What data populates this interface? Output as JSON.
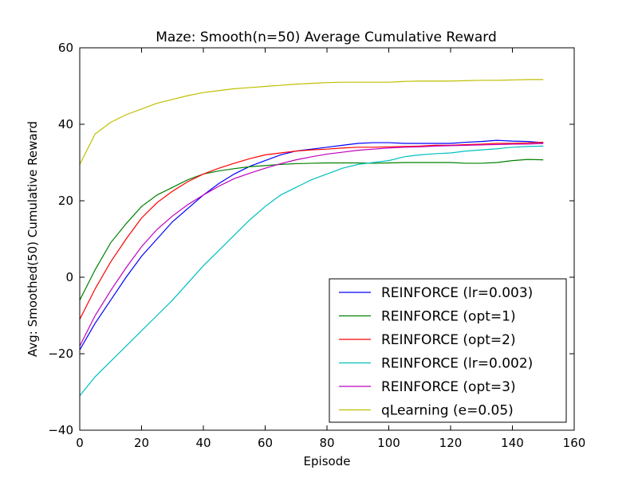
{
  "chart_data": {
    "type": "line",
    "title": "Maze: Smooth(n=50) Average Cumulative Reward",
    "xlabel": "Episode",
    "ylabel": "Avg: Smoothed(50) Cumulative Reward",
    "xlim": [
      0,
      160
    ],
    "ylim": [
      -40,
      60
    ],
    "xticks": [
      0,
      20,
      40,
      60,
      80,
      100,
      120,
      140,
      160
    ],
    "yticks": [
      -40,
      -20,
      0,
      20,
      40,
      60
    ],
    "xtick_labels": [
      "0",
      "20",
      "40",
      "60",
      "80",
      "100",
      "120",
      "140",
      "160"
    ],
    "ytick_labels": [
      "−40",
      "−20",
      "0",
      "20",
      "40",
      "60"
    ],
    "grid": false,
    "legend_position": "lower-right",
    "series": [
      {
        "name": "REINFORCE (lr=0.003)",
        "color": "#0000ff",
        "x": [
          0,
          5,
          10,
          15,
          20,
          25,
          30,
          35,
          40,
          45,
          50,
          55,
          60,
          65,
          70,
          75,
          80,
          85,
          90,
          95,
          100,
          105,
          110,
          115,
          120,
          125,
          130,
          135,
          140,
          145,
          150
        ],
        "y": [
          -19,
          -12,
          -6,
          0,
          5.5,
          10,
          14.5,
          18,
          21.5,
          24.5,
          27,
          29,
          30.5,
          32,
          33,
          33.5,
          34,
          34.5,
          35,
          35.2,
          35.2,
          35,
          35,
          35,
          35,
          35.3,
          35.5,
          35.8,
          35.6,
          35.5,
          35.2
        ]
      },
      {
        "name": "REINFORCE (opt=1)",
        "color": "#008000",
        "x": [
          0,
          5,
          10,
          15,
          20,
          25,
          30,
          35,
          40,
          45,
          50,
          55,
          60,
          65,
          70,
          75,
          80,
          85,
          90,
          95,
          100,
          105,
          110,
          115,
          120,
          125,
          130,
          135,
          140,
          145,
          150
        ],
        "y": [
          -6,
          2,
          9,
          14,
          18.5,
          21.5,
          23.5,
          25.5,
          27,
          27.8,
          28.4,
          28.9,
          29.2,
          29.5,
          29.7,
          29.8,
          29.9,
          29.9,
          29.9,
          29.8,
          29.9,
          30,
          30,
          30,
          30,
          29.8,
          29.8,
          30,
          30.5,
          30.8,
          30.7
        ]
      },
      {
        "name": "REINFORCE (opt=2)",
        "color": "#ff0000",
        "x": [
          0,
          5,
          10,
          15,
          20,
          25,
          30,
          35,
          40,
          45,
          50,
          55,
          60,
          65,
          70,
          75,
          80,
          85,
          90,
          95,
          100,
          105,
          110,
          115,
          120,
          125,
          130,
          135,
          140,
          145,
          150
        ],
        "y": [
          -11,
          -3,
          4,
          10,
          15.5,
          19.5,
          22.5,
          25,
          27,
          28.5,
          29.8,
          31,
          32,
          32.5,
          33,
          33.3,
          33.5,
          33.8,
          34,
          34,
          34.1,
          34.2,
          34.3,
          34.5,
          34.5,
          34.7,
          34.8,
          35,
          35,
          35.1,
          35.3
        ]
      },
      {
        "name": "REINFORCE (lr=0.002)",
        "color": "#00bfbf",
        "x": [
          0,
          5,
          10,
          15,
          20,
          25,
          30,
          35,
          40,
          45,
          50,
          55,
          60,
          65,
          70,
          75,
          80,
          85,
          90,
          95,
          100,
          105,
          110,
          115,
          120,
          125,
          130,
          135,
          140,
          145,
          150
        ],
        "y": [
          -31,
          -26,
          -22,
          -18,
          -14,
          -10,
          -6,
          -1.5,
          3,
          7,
          11,
          15,
          18.5,
          21.5,
          23.5,
          25.5,
          27,
          28.5,
          29.5,
          30,
          30.5,
          31.5,
          32,
          32.3,
          32.5,
          33,
          33.3,
          33.6,
          34,
          34.2,
          34.3
        ]
      },
      {
        "name": "REINFORCE (opt=3)",
        "color": "#bf00bf",
        "x": [
          0,
          5,
          10,
          15,
          20,
          25,
          30,
          35,
          40,
          45,
          50,
          55,
          60,
          65,
          70,
          75,
          80,
          85,
          90,
          95,
          100,
          105,
          110,
          115,
          120,
          125,
          130,
          135,
          140,
          145,
          150
        ],
        "y": [
          -18,
          -10,
          -3.5,
          2.5,
          8,
          12.5,
          16,
          19,
          21.5,
          23.8,
          25.8,
          27.2,
          28.5,
          29.7,
          30.7,
          31.5,
          32.2,
          32.7,
          33.2,
          33.5,
          33.8,
          34,
          34.1,
          34.3,
          34.4,
          34.5,
          34.6,
          34.7,
          34.8,
          34.8,
          35
        ]
      },
      {
        "name": "qLearning (e=0.05)",
        "color": "#bfbf00",
        "x": [
          0,
          5,
          10,
          15,
          20,
          25,
          30,
          35,
          40,
          45,
          50,
          55,
          60,
          65,
          70,
          75,
          80,
          85,
          90,
          95,
          100,
          105,
          110,
          115,
          120,
          125,
          130,
          135,
          140,
          145,
          150
        ],
        "y": [
          29.5,
          37.5,
          40.5,
          42.5,
          44,
          45.5,
          46.5,
          47.5,
          48.3,
          48.8,
          49.3,
          49.6,
          49.9,
          50.2,
          50.5,
          50.7,
          50.9,
          51,
          51,
          51,
          51,
          51.2,
          51.3,
          51.3,
          51.3,
          51.4,
          51.5,
          51.5,
          51.6,
          51.7,
          51.7
        ]
      }
    ]
  }
}
